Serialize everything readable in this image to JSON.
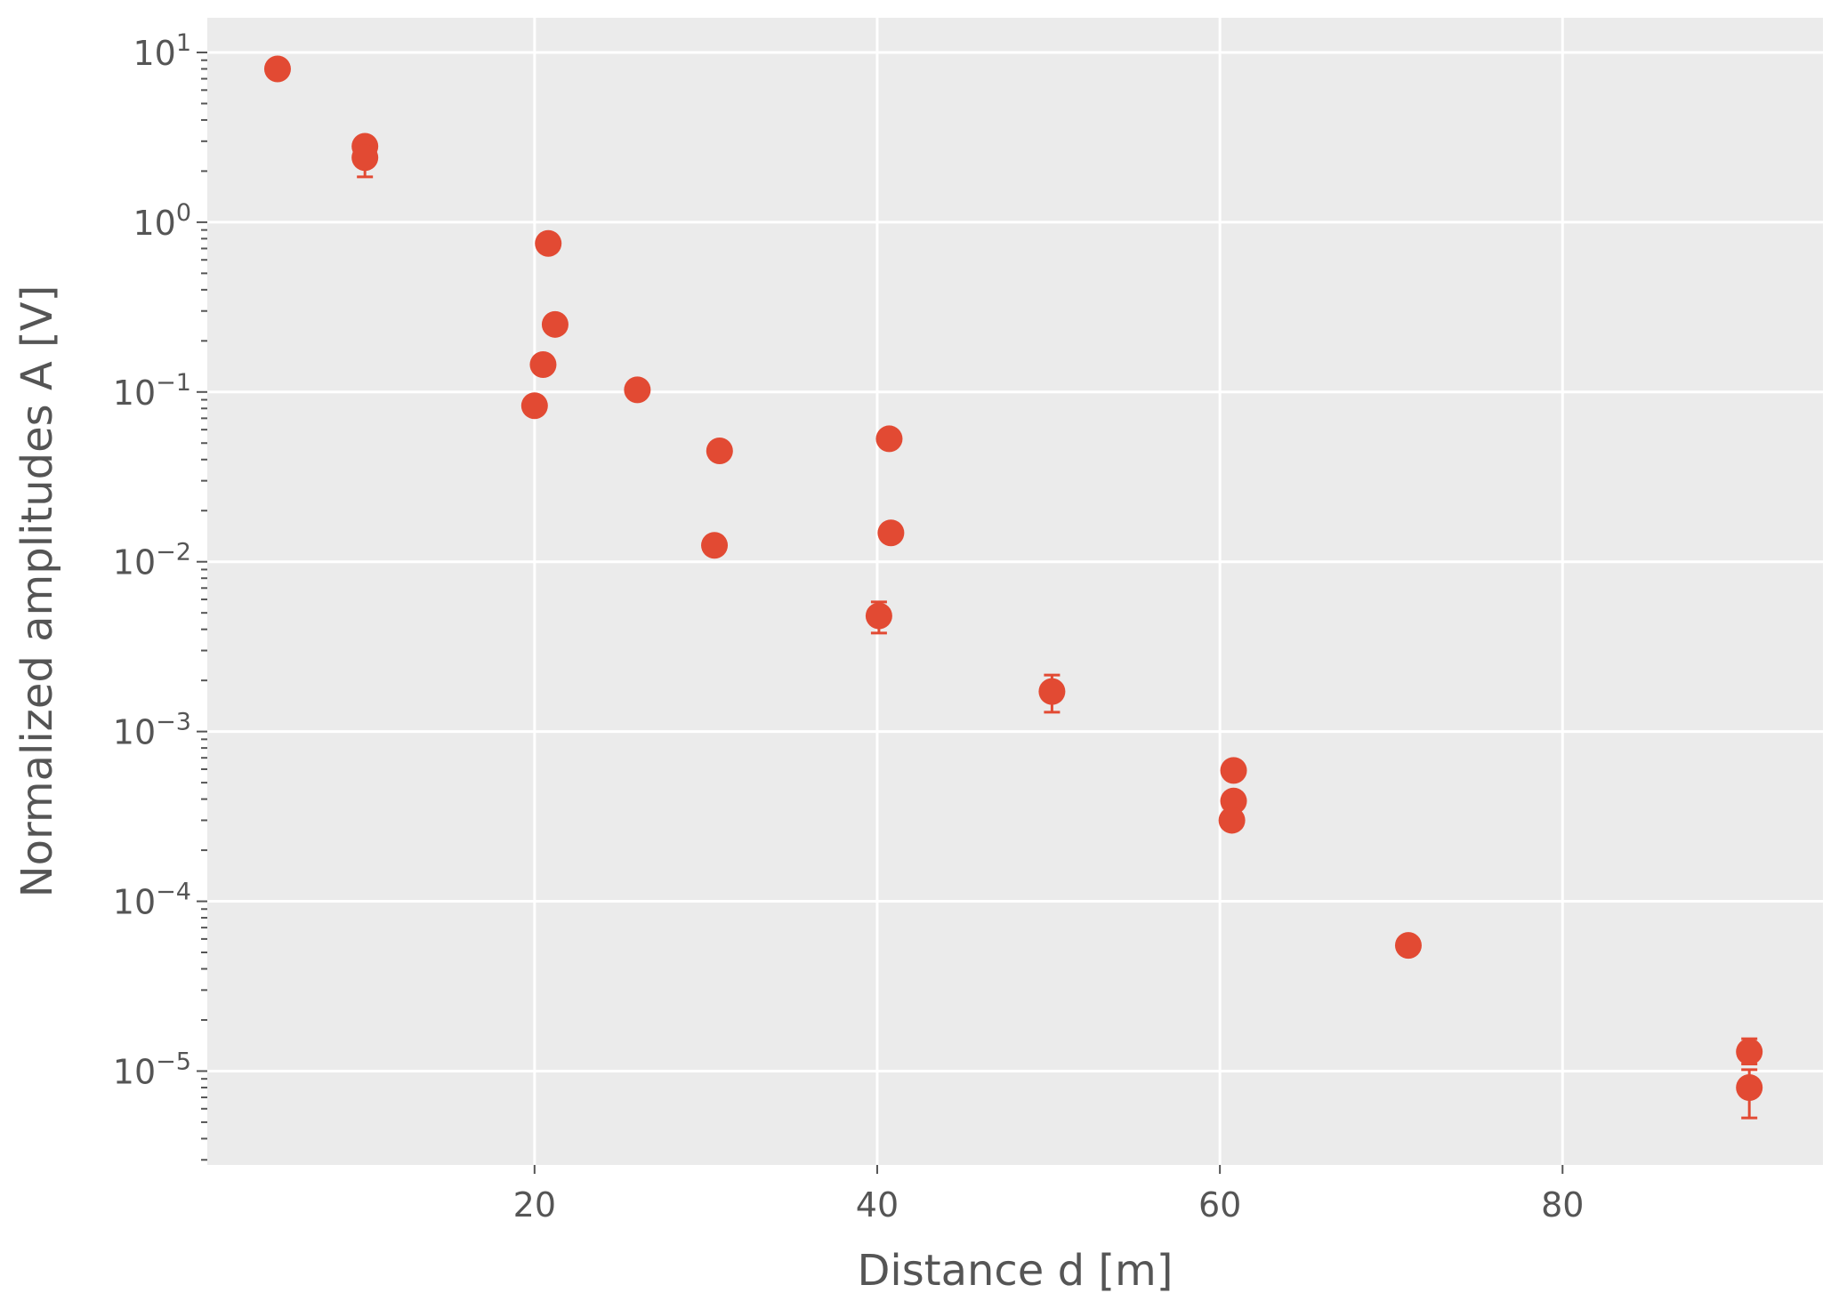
{
  "chart_data": {
    "type": "scatter",
    "xlabel": "Distance d [m]",
    "ylabel": "Normalized amplitudes A [V]",
    "xlim": [
      0.9,
      95.2
    ],
    "ylim": [
      2.8e-06,
      16
    ],
    "y_scale": "log",
    "grid": true,
    "x_ticks": [
      {
        "value": 20,
        "label": "20"
      },
      {
        "value": 40,
        "label": "40"
      },
      {
        "value": 60,
        "label": "60"
      },
      {
        "value": 80,
        "label": "80"
      }
    ],
    "y_ticks": [
      {
        "value": 10,
        "base": "10",
        "exp": "1"
      },
      {
        "value": 1,
        "base": "10",
        "exp": "0"
      },
      {
        "value": 0.1,
        "base": "10",
        "exp": "−1"
      },
      {
        "value": 0.01,
        "base": "10",
        "exp": "−2"
      },
      {
        "value": 0.001,
        "base": "10",
        "exp": "−3"
      },
      {
        "value": 0.0001,
        "base": "10",
        "exp": "−4"
      },
      {
        "value": 1e-05,
        "base": "10",
        "exp": "−5"
      }
    ],
    "points": [
      {
        "x": 5.0,
        "y": 8.0
      },
      {
        "x": 10.1,
        "y": 2.8
      },
      {
        "x": 10.1,
        "y": 2.4,
        "err_low": 1.85,
        "err_high": 2.6
      },
      {
        "x": 20.8,
        "y": 0.75
      },
      {
        "x": 21.2,
        "y": 0.25
      },
      {
        "x": 20.5,
        "y": 0.145
      },
      {
        "x": 20.0,
        "y": 0.083
      },
      {
        "x": 26.0,
        "y": 0.103
      },
      {
        "x": 30.8,
        "y": 0.045
      },
      {
        "x": 30.5,
        "y": 0.0125
      },
      {
        "x": 40.7,
        "y": 0.053
      },
      {
        "x": 40.8,
        "y": 0.0148
      },
      {
        "x": 40.1,
        "y": 0.0048,
        "err_low": 0.0038,
        "err_high": 0.0058
      },
      {
        "x": 50.2,
        "y": 0.00172,
        "err_low": 0.0013,
        "err_high": 0.00215
      },
      {
        "x": 60.8,
        "y": 0.00059
      },
      {
        "x": 60.8,
        "y": 0.00039
      },
      {
        "x": 60.7,
        "y": 0.0003
      },
      {
        "x": 71.0,
        "y": 5.5e-05
      },
      {
        "x": 90.9,
        "y": 1.3e-05,
        "err_low": 1.1e-05,
        "err_high": 1.55e-05
      },
      {
        "x": 90.9,
        "y": 8e-06,
        "err_low": 5.3e-06,
        "err_high": 1.02e-05
      }
    ],
    "colors": {
      "marker": "#E24A33",
      "plot_background": "#EBEBEB",
      "grid": "#FFFFFF",
      "text": "#555555",
      "minor_tick": "#555555"
    }
  }
}
